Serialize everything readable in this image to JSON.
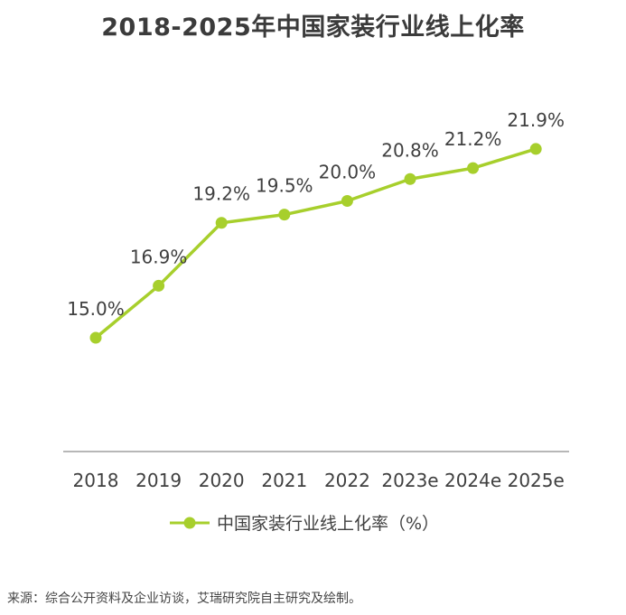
{
  "title": "2018-2025年中国家装行业线上化率",
  "source": "来源：综合公开资料及企业访谈，艾瑞研究院自主研究及绘制。",
  "colors": {
    "series": "#a7cf2c",
    "axis": "#8c8c8c",
    "text": "#404040"
  },
  "chart_data": {
    "type": "line",
    "title": "2018-2025年中国家装行业线上化率",
    "categories": [
      "2018",
      "2019",
      "2020",
      "2021",
      "2022",
      "2023e",
      "2024e",
      "2025e"
    ],
    "series": [
      {
        "name": "中国家装行业线上化率（%）",
        "values": [
          15.0,
          16.9,
          19.2,
          19.5,
          20.0,
          20.8,
          21.2,
          21.9
        ],
        "labels": [
          "15.0%",
          "16.9%",
          "19.2%",
          "19.5%",
          "20.0%",
          "20.8%",
          "21.2%",
          "21.9%"
        ]
      }
    ],
    "xlabel": "",
    "ylabel": "",
    "ylim": [
      11.0,
      24.0
    ],
    "grid": false,
    "legend_position": "bottom"
  }
}
